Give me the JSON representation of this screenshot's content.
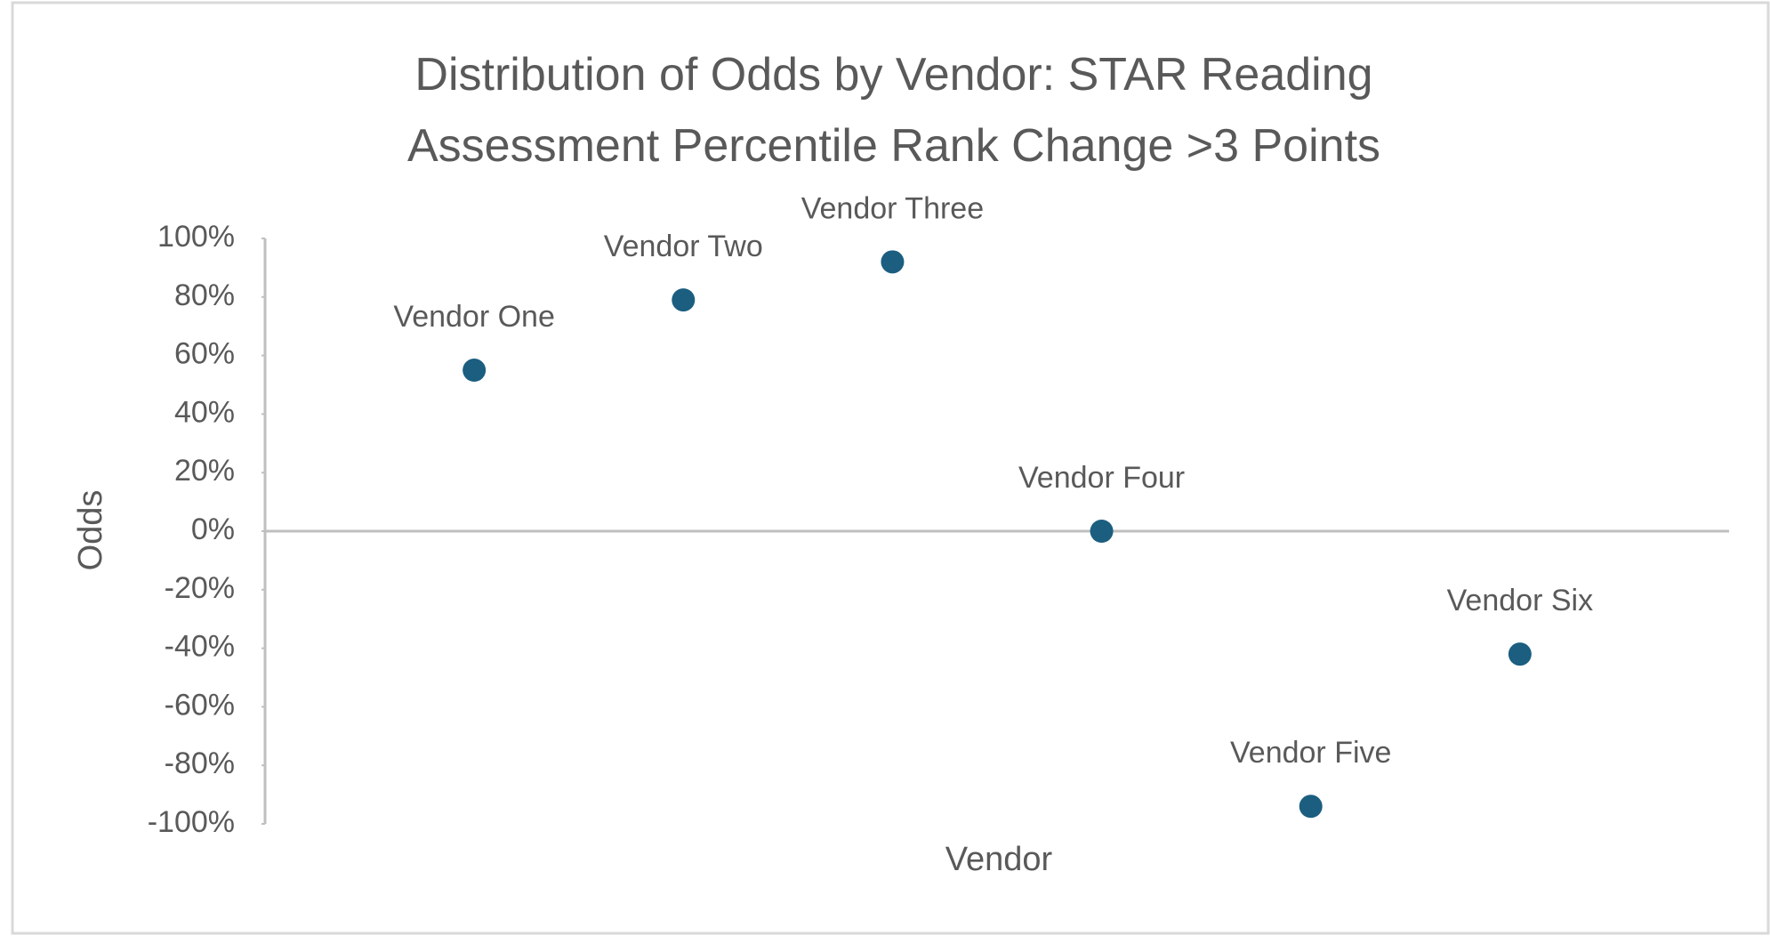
{
  "chart_data": {
    "type": "scatter",
    "title": "Distribution of Odds by Vendor: STAR Reading Assessment Percentile Rank Change >3 Points",
    "x_label": "Vendor",
    "y_label": "Odds",
    "categories": [
      "Vendor One",
      "Vendor Two",
      "Vendor Three",
      "Vendor Four",
      "Vendor Five",
      "Vendor Six"
    ],
    "values": [
      55,
      79,
      92,
      0,
      -94,
      -42
    ],
    "color": "#1b5e80",
    "ylim": [
      -100,
      100
    ],
    "yticks": [
      {
        "value": -100,
        "label": "-100%"
      },
      {
        "value": -80,
        "label": "-80%"
      },
      {
        "value": -60,
        "label": "-60%"
      },
      {
        "value": -40,
        "label": "-40%"
      },
      {
        "value": -20,
        "label": "-20%"
      },
      {
        "value": 0,
        "label": "0%"
      },
      {
        "value": 20,
        "label": "20%"
      },
      {
        "value": 40,
        "label": "40%"
      },
      {
        "value": 60,
        "label": "60%"
      },
      {
        "value": 80,
        "label": "80%"
      },
      {
        "value": 100,
        "label": "100%"
      }
    ],
    "grid": false
  }
}
